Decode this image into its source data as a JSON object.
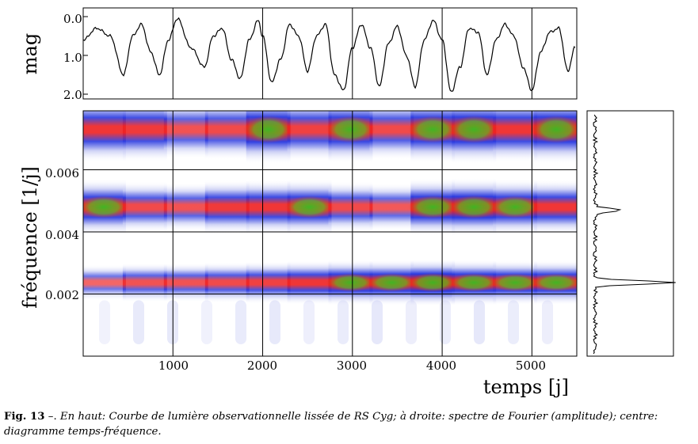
{
  "figure": {
    "caption_label": "Fig. 13",
    "caption_sep": " –. ",
    "caption_text": "En haut: Courbe de lumière observationnelle lissée de RS Cyg; à droite: spectre de Fourier (amplitude); centre: diagramme temps-fréquence."
  },
  "chart_data": [
    {
      "type": "line",
      "id": "light-curve",
      "ylabel": "mag",
      "y_inverted": true,
      "ylim": [
        2.0,
        0.0
      ],
      "xlim": [
        0,
        5500
      ],
      "yticks": [
        "0.0",
        "1.0",
        "2.0"
      ],
      "x": [
        0,
        150,
        300,
        450,
        550,
        650,
        750,
        850,
        950,
        1050,
        1200,
        1350,
        1450,
        1550,
        1650,
        1750,
        1850,
        1950,
        2000,
        2100,
        2200,
        2300,
        2400,
        2500,
        2600,
        2700,
        2800,
        2900,
        3000,
        3100,
        3200,
        3300,
        3400,
        3500,
        3600,
        3700,
        3800,
        3900,
        4000,
        4100,
        4200,
        4300,
        4400,
        4500,
        4600,
        4700,
        4800,
        4900,
        5000,
        5100,
        5200,
        5300,
        5400,
        5480
      ],
      "y": [
        0.6,
        0.3,
        0.5,
        1.5,
        0.5,
        0.2,
        0.9,
        1.5,
        0.6,
        0.05,
        0.8,
        1.3,
        0.5,
        0.3,
        1.1,
        1.6,
        0.6,
        0.1,
        0.5,
        1.7,
        1.1,
        0.2,
        0.5,
        1.4,
        0.5,
        0.2,
        1.5,
        1.9,
        0.8,
        0.2,
        0.8,
        1.8,
        0.7,
        0.25,
        1.0,
        1.8,
        0.6,
        0.1,
        0.6,
        1.95,
        1.3,
        0.3,
        0.4,
        1.5,
        0.6,
        0.2,
        0.5,
        1.3,
        1.9,
        0.9,
        0.4,
        0.3,
        1.4,
        0.8
      ]
    },
    {
      "type": "heatmap",
      "id": "time-frequency",
      "xlabel": "temps [j]",
      "ylabel": "fréquence [1/j]",
      "xlim": [
        0,
        5500
      ],
      "ylim": [
        0.0,
        0.0079
      ],
      "xticks": [
        "1000",
        "2000",
        "3000",
        "4000",
        "5000"
      ],
      "yticks": [
        "0.002",
        "0.004",
        "0.006"
      ],
      "bands": [
        {
          "freq": 0.00237,
          "intensity": [
            0.3,
            0.5,
            0.5,
            0.6,
            0.7,
            0.8,
            0.9,
            0.9,
            1.0,
            0.9,
            0.85,
            0.85
          ]
        },
        {
          "freq": 0.0048,
          "intensity": [
            0.85,
            0.6,
            0.5,
            0.75,
            0.8,
            0.85,
            0.6,
            0.45,
            0.9,
            0.95,
            0.85,
            0.8
          ]
        },
        {
          "freq": 0.0073,
          "intensity": [
            0.8,
            0.75,
            0.5,
            0.6,
            0.9,
            0.7,
            0.85,
            0.6,
            0.85,
            0.9,
            0.8,
            0.9
          ]
        }
      ]
    },
    {
      "type": "line",
      "id": "fourier-spectrum",
      "orientation": "vertical",
      "peaks": [
        {
          "freq": 0.00237,
          "amplitude": 1.0
        },
        {
          "freq": 0.0047,
          "amplitude": 0.34
        }
      ]
    }
  ]
}
